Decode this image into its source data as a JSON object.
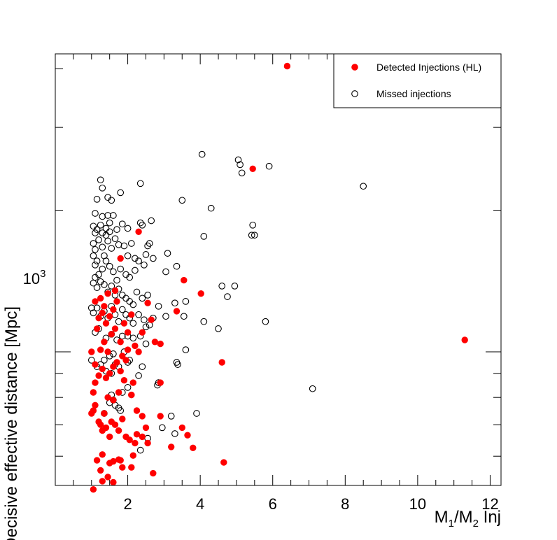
{
  "chart_data": {
    "type": "scatter",
    "title": "",
    "xlabel_parts": {
      "m": "M",
      "sub1": "1",
      "slash": "/M",
      "sub2": "2",
      "rest": " Inj"
    },
    "ylabel": "Decisive effective distance [Mpc]",
    "x_axis": {
      "scale": "linear",
      "range": [
        0,
        12.3
      ],
      "ticks": [
        2,
        4,
        6,
        8,
        10,
        12
      ],
      "tick_labels": [
        "2",
        "4",
        "6",
        "8",
        "10",
        "12"
      ]
    },
    "y_axis": {
      "scale": "log",
      "range": [
        520,
        4300
      ],
      "labeled_ticks": [
        1000
      ],
      "tick_labels": [
        "10^3"
      ],
      "tick_label_base": "10",
      "tick_label_exp": "3"
    },
    "legend": {
      "placement": "top-right"
    },
    "grid": false,
    "series": [
      {
        "name": "Detected Injections (HL)",
        "marker": "filled-circle",
        "color": "#ff0000",
        "points": [
          [
            6.4,
            4050
          ],
          [
            5.45,
            2450
          ],
          [
            2.3,
            1800
          ],
          [
            3.55,
            1420
          ],
          [
            4.02,
            1330
          ],
          [
            3.35,
            1220
          ],
          [
            2.55,
            1270
          ],
          [
            1.8,
            1580
          ],
          [
            11.3,
            1060
          ],
          [
            4.6,
            950
          ],
          [
            2.75,
            1050
          ],
          [
            2.9,
            1040
          ],
          [
            2.4,
            1100
          ],
          [
            2.2,
            1030
          ],
          [
            2.3,
            1000
          ],
          [
            2.0,
            1010
          ],
          [
            1.95,
            960
          ],
          [
            1.85,
            980
          ],
          [
            1.8,
            910
          ],
          [
            1.7,
            950
          ],
          [
            1.6,
            930
          ],
          [
            1.5,
            900
          ],
          [
            1.4,
            880
          ],
          [
            1.3,
            920
          ],
          [
            1.2,
            890
          ],
          [
            1.1,
            860
          ],
          [
            1.05,
            820
          ],
          [
            1.25,
            1010
          ],
          [
            1.35,
            1050
          ],
          [
            1.45,
            1000
          ],
          [
            1.55,
            1090
          ],
          [
            1.65,
            1120
          ],
          [
            1.2,
            1180
          ],
          [
            1.15,
            1120
          ],
          [
            1.3,
            1210
          ],
          [
            1.4,
            1150
          ],
          [
            1.1,
            1280
          ],
          [
            1.25,
            1300
          ],
          [
            1.35,
            1250
          ],
          [
            1.6,
            1230
          ],
          [
            1.7,
            1280
          ],
          [
            1.5,
            1190
          ],
          [
            1.8,
            1050
          ],
          [
            1.9,
            870
          ],
          [
            2.1,
            810
          ],
          [
            1.75,
            820
          ],
          [
            1.45,
            800
          ],
          [
            1.6,
            790
          ],
          [
            2.15,
            860
          ],
          [
            2.9,
            860
          ],
          [
            2.9,
            730
          ],
          [
            2.1,
            810
          ],
          [
            2.25,
            750
          ],
          [
            2.4,
            730
          ],
          [
            1.05,
            750
          ],
          [
            1.1,
            770
          ],
          [
            1.0,
            740
          ],
          [
            1.85,
            720
          ],
          [
            1.65,
            700
          ],
          [
            1.55,
            710
          ],
          [
            1.35,
            740
          ],
          [
            1.25,
            700
          ],
          [
            1.3,
            680
          ],
          [
            1.2,
            710
          ],
          [
            1.4,
            690
          ],
          [
            1.5,
            660
          ],
          [
            1.75,
            680
          ],
          [
            1.95,
            660
          ],
          [
            2.05,
            650
          ],
          [
            2.5,
            690
          ],
          [
            2.4,
            660
          ],
          [
            2.2,
            640
          ],
          [
            3.5,
            690
          ],
          [
            3.65,
            665
          ],
          [
            2.55,
            640
          ],
          [
            3.2,
            628
          ],
          [
            3.8,
            625
          ],
          [
            4.65,
            582
          ],
          [
            1.3,
            605
          ],
          [
            1.15,
            588
          ],
          [
            1.6,
            585
          ],
          [
            1.5,
            580
          ],
          [
            1.8,
            588
          ],
          [
            1.75,
            590
          ],
          [
            1.85,
            568
          ],
          [
            2.1,
            568
          ],
          [
            2.7,
            552
          ],
          [
            1.25,
            560
          ],
          [
            1.45,
            542
          ],
          [
            1.3,
            531
          ],
          [
            1.6,
            528
          ],
          [
            1.05,
            510
          ],
          [
            2.15,
            602
          ],
          [
            2.25,
            668
          ],
          [
            1.0,
            1000
          ],
          [
            1.1,
            940
          ],
          [
            2.1,
            1200
          ],
          [
            2.65,
            1170
          ],
          [
            1.9,
            1150
          ],
          [
            2.0,
            1100
          ],
          [
            1.45,
            1330
          ],
          [
            1.65,
            1350
          ]
        ]
      },
      {
        "name": "Missed injections",
        "marker": "open-circle",
        "color": "#000000",
        "points": [
          [
            4.05,
            2630
          ],
          [
            5.05,
            2560
          ],
          [
            5.1,
            2500
          ],
          [
            5.15,
            2400
          ],
          [
            5.9,
            2480
          ],
          [
            8.5,
            2250
          ],
          [
            2.35,
            2280
          ],
          [
            1.25,
            2320
          ],
          [
            1.3,
            2230
          ],
          [
            1.8,
            2180
          ],
          [
            1.45,
            2130
          ],
          [
            1.55,
            2100
          ],
          [
            3.5,
            2100
          ],
          [
            1.15,
            2110
          ],
          [
            1.1,
            1970
          ],
          [
            1.3,
            1940
          ],
          [
            1.45,
            1950
          ],
          [
            1.6,
            1950
          ],
          [
            4.3,
            2020
          ],
          [
            2.35,
            1880
          ],
          [
            2.4,
            1860
          ],
          [
            2.65,
            1900
          ],
          [
            1.05,
            1850
          ],
          [
            1.15,
            1820
          ],
          [
            1.25,
            1860
          ],
          [
            1.4,
            1830
          ],
          [
            1.5,
            1880
          ],
          [
            1.7,
            1820
          ],
          [
            1.85,
            1870
          ],
          [
            2.0,
            1830
          ],
          [
            5.45,
            1860
          ],
          [
            4.1,
            1760
          ],
          [
            3.1,
            1620
          ],
          [
            5.5,
            1770
          ],
          [
            5.42,
            1770
          ],
          [
            2.7,
            1580
          ],
          [
            3.35,
            1520
          ],
          [
            3.05,
            1480
          ],
          [
            2.45,
            1530
          ],
          [
            2.3,
            1560
          ],
          [
            2.0,
            1600
          ],
          [
            1.05,
            1700
          ],
          [
            1.1,
            1650
          ],
          [
            1.2,
            1730
          ],
          [
            1.3,
            1670
          ],
          [
            1.35,
            1600
          ],
          [
            1.45,
            1720
          ],
          [
            1.55,
            1660
          ],
          [
            1.65,
            1740
          ],
          [
            1.75,
            1690
          ],
          [
            1.9,
            1680
          ],
          [
            2.1,
            1700
          ],
          [
            2.2,
            1580
          ],
          [
            2.55,
            1680
          ],
          [
            2.6,
            1700
          ],
          [
            2.5,
            1610
          ],
          [
            2.2,
            1490
          ],
          [
            2.05,
            1440
          ],
          [
            1.95,
            1460
          ],
          [
            1.8,
            1500
          ],
          [
            1.7,
            1420
          ],
          [
            1.6,
            1480
          ],
          [
            1.5,
            1520
          ],
          [
            1.4,
            1560
          ],
          [
            1.3,
            1500
          ],
          [
            1.2,
            1460
          ],
          [
            1.1,
            1440
          ],
          [
            1.05,
            1400
          ],
          [
            1.15,
            1370
          ],
          [
            1.25,
            1410
          ],
          [
            1.35,
            1390
          ],
          [
            1.45,
            1340
          ],
          [
            1.55,
            1380
          ],
          [
            1.65,
            1320
          ],
          [
            1.75,
            1360
          ],
          [
            1.85,
            1320
          ],
          [
            1.95,
            1300
          ],
          [
            2.05,
            1280
          ],
          [
            2.15,
            1260
          ],
          [
            2.25,
            1340
          ],
          [
            2.4,
            1300
          ],
          [
            2.55,
            1320
          ],
          [
            2.85,
            1250
          ],
          [
            3.3,
            1270
          ],
          [
            3.6,
            1280
          ],
          [
            4.6,
            1380
          ],
          [
            4.95,
            1380
          ],
          [
            4.75,
            1310
          ],
          [
            1.0,
            1240
          ],
          [
            1.05,
            1210
          ],
          [
            1.15,
            1240
          ],
          [
            1.25,
            1190
          ],
          [
            1.35,
            1220
          ],
          [
            1.45,
            1180
          ],
          [
            1.55,
            1250
          ],
          [
            1.65,
            1200
          ],
          [
            1.75,
            1160
          ],
          [
            1.85,
            1230
          ],
          [
            1.95,
            1200
          ],
          [
            2.05,
            1180
          ],
          [
            2.15,
            1150
          ],
          [
            2.3,
            1200
          ],
          [
            2.45,
            1170
          ],
          [
            2.6,
            1140
          ],
          [
            2.7,
            1180
          ],
          [
            3.05,
            1190
          ],
          [
            3.55,
            1190
          ],
          [
            4.1,
            1160
          ],
          [
            5.8,
            1160
          ],
          [
            4.5,
            1120
          ],
          [
            1.1,
            1100
          ],
          [
            1.2,
            1120
          ],
          [
            1.4,
            1070
          ],
          [
            1.55,
            1090
          ],
          [
            1.7,
            1060
          ],
          [
            1.85,
            1080
          ],
          [
            2.0,
            1080
          ],
          [
            2.15,
            1070
          ],
          [
            2.35,
            1080
          ],
          [
            2.5,
            1130
          ],
          [
            3.6,
            1010
          ],
          [
            2.5,
            1040
          ],
          [
            1.9,
            1000
          ],
          [
            1.6,
            990
          ],
          [
            1.35,
            960
          ],
          [
            1.5,
            980
          ],
          [
            1.25,
            940
          ],
          [
            1.0,
            960
          ],
          [
            1.15,
            930
          ],
          [
            1.65,
            940
          ],
          [
            1.75,
            930
          ],
          [
            2.0,
            950
          ],
          [
            2.05,
            960
          ],
          [
            2.4,
            930
          ],
          [
            3.35,
            950
          ],
          [
            3.38,
            940
          ],
          [
            1.4,
            910
          ],
          [
            1.55,
            900
          ],
          [
            2.3,
            890
          ],
          [
            2.85,
            860
          ],
          [
            2.82,
            850
          ],
          [
            1.85,
            820
          ],
          [
            2.0,
            840
          ],
          [
            1.55,
            810
          ],
          [
            1.5,
            780
          ],
          [
            1.6,
            790
          ],
          [
            1.65,
            770
          ],
          [
            1.35,
            740
          ],
          [
            1.75,
            760
          ],
          [
            1.8,
            750
          ],
          [
            3.9,
            740
          ],
          [
            3.2,
            730
          ],
          [
            7.1,
            835
          ],
          [
            2.95,
            690
          ],
          [
            3.3,
            670
          ],
          [
            2.55,
            655
          ],
          [
            2.35,
            618
          ],
          [
            1.1,
            1530
          ],
          [
            1.15,
            1560
          ],
          [
            1.05,
            1600
          ],
          [
            1.1,
            1790
          ],
          [
            1.3,
            1790
          ],
          [
            1.4,
            1770
          ],
          [
            1.5,
            1800
          ]
        ]
      }
    ]
  }
}
